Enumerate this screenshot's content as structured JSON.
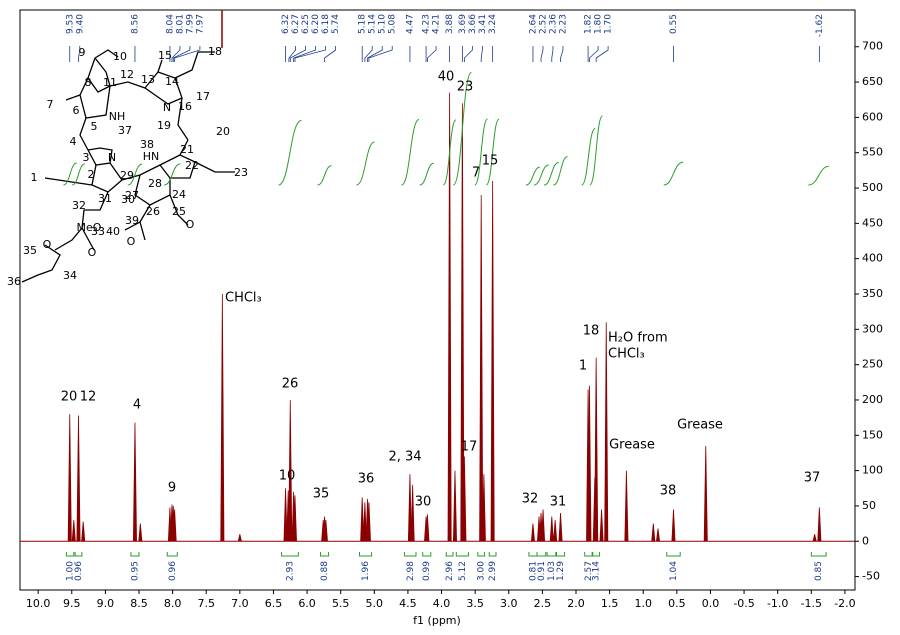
{
  "chart_data": {
    "type": "line",
    "x_label": "f1 (ppm)",
    "color": "#8b0000",
    "xlim": [
      10.27,
      -2.15
    ],
    "ylim": [
      -69,
      752
    ],
    "xticks": [
      {
        "value": 10,
        "label": "10.0"
      },
      9.5,
      {
        "value": 9,
        "label": "9.0"
      },
      8.5,
      {
        "value": 8,
        "label": "8.0"
      },
      7.5,
      {
        "value": 7,
        "label": "7.0"
      },
      6.5,
      {
        "value": 6,
        "label": "6.0"
      },
      5.5,
      {
        "value": 5,
        "label": "5.0"
      },
      4.5,
      {
        "value": 4,
        "label": "4.0"
      },
      3.5,
      {
        "value": 3,
        "label": "3.0"
      },
      2.5,
      {
        "value": 2,
        "label": "2.0"
      },
      1.5,
      {
        "value": 1,
        "label": "1.0"
      },
      0.5,
      {
        "value": 0,
        "label": "0.0"
      },
      -0.5,
      {
        "value": -1,
        "label": "-1.0"
      },
      -1.5,
      {
        "value": -2,
        "label": "-2.0"
      }
    ],
    "yticks": [
      -50,
      0,
      50,
      100,
      150,
      200,
      250,
      300,
      350,
      400,
      450,
      500,
      550,
      600,
      650,
      700
    ],
    "x": [
      9.53,
      9.47,
      9.4,
      9.33,
      8.56,
      8.48,
      8.04,
      8.01,
      7.99,
      7.97,
      7.26,
      7.0,
      6.32,
      6.28,
      6.25,
      6.2,
      6.18,
      5.76,
      5.74,
      5.72,
      5.18,
      5.14,
      5.1,
      5.08,
      4.47,
      4.43,
      4.23,
      4.21,
      3.88,
      3.8,
      3.69,
      3.66,
      3.41,
      3.37,
      3.24,
      2.64,
      2.55,
      2.52,
      2.49,
      2.36,
      2.31,
      2.23,
      1.82,
      1.8,
      1.72,
      1.7,
      1.62,
      1.55,
      1.25,
      0.85,
      0.78,
      0.55,
      0.07,
      -1.55,
      -1.62
    ],
    "values": [
      180,
      30,
      178,
      28,
      168,
      25,
      48,
      52,
      50,
      45,
      350,
      10,
      75,
      72,
      200,
      70,
      65,
      30,
      35,
      30,
      62,
      55,
      60,
      55,
      95,
      80,
      35,
      38,
      635,
      100,
      620,
      120,
      490,
      95,
      510,
      25,
      35,
      40,
      45,
      35,
      30,
      40,
      215,
      220,
      90,
      260,
      45,
      310,
      100,
      25,
      18,
      45,
      135,
      10,
      48
    ],
    "peak_labels": [
      9.53,
      {
        "value": 9.4,
        "label": "9.40"
      },
      8.56,
      8.04,
      8.01,
      7.99,
      7.97,
      6.32,
      6.27,
      6.25,
      {
        "value": 6.2,
        "label": "6.20"
      },
      6.18,
      5.74,
      5.18,
      5.14,
      {
        "value": 5.1,
        "label": "5.10"
      },
      5.08,
      4.47,
      4.23,
      4.21,
      3.88,
      3.69,
      3.66,
      3.41,
      3.24,
      2.64,
      2.52,
      2.36,
      2.23,
      1.82,
      {
        "value": 1.8,
        "label": "1.80"
      },
      {
        "value": 1.7,
        "label": "1.70"
      },
      0.55,
      -1.62
    ],
    "integrals": [
      {
        "value": 1,
        "label": "1.00",
        "range": [
          9.58,
          9.47
        ]
      },
      {
        "value": 0.96,
        "label": "0.96",
        "range": [
          9.45,
          9.35
        ]
      },
      {
        "value": 0.95,
        "label": "0.95",
        "range": [
          8.62,
          8.5
        ]
      },
      {
        "value": 0.96,
        "label": "0.96",
        "range": [
          8.08,
          7.93
        ]
      },
      {
        "value": 2.93,
        "label": "2.93",
        "range": [
          6.38,
          6.13
        ]
      },
      {
        "value": 0.88,
        "label": "0.88",
        "range": [
          5.8,
          5.68
        ]
      },
      {
        "value": 1.96,
        "label": "1.96",
        "range": [
          5.22,
          5.04
        ]
      },
      {
        "value": 2.98,
        "label": "2.98",
        "range": [
          4.55,
          4.38
        ]
      },
      {
        "value": 0.99,
        "label": "0.99",
        "range": [
          4.28,
          4.16
        ]
      },
      {
        "value": 2.96,
        "label": "2.96",
        "range": [
          3.93,
          3.83
        ]
      },
      {
        "value": 5.12,
        "label": "5.12",
        "range": [
          3.78,
          3.6
        ]
      },
      {
        "value": 3,
        "label": "3.00",
        "range": [
          3.46,
          3.36
        ]
      },
      {
        "value": 2.99,
        "label": "2.99",
        "range": [
          3.29,
          3.19
        ]
      },
      {
        "value": 0.81,
        "label": "0.81",
        "range": [
          2.7,
          2.58
        ]
      },
      {
        "value": 0.91,
        "label": "0.91",
        "range": [
          2.58,
          2.45
        ]
      },
      {
        "value": 1.03,
        "label": "1.03",
        "range": [
          2.43,
          2.3
        ]
      },
      {
        "value": 1.29,
        "label": "1.29",
        "range": [
          2.29,
          2.17
        ]
      },
      {
        "value": 2.57,
        "label": "2.57",
        "range": [
          1.87,
          1.76
        ]
      },
      {
        "value": 3.14,
        "label": "3.14",
        "range": [
          1.75,
          1.65
        ]
      },
      {
        "value": 1.04,
        "label": "1.04",
        "range": [
          0.65,
          0.45
        ]
      },
      {
        "value": 0.85,
        "label": "0.85",
        "range": [
          -1.5,
          -1.72
        ]
      }
    ],
    "annotations": [
      "20",
      "12",
      "4",
      "9",
      "CHCl₃",
      "10",
      "26",
      "35",
      "36",
      "2, 34",
      "30",
      "40",
      "23",
      "7",
      "15",
      "17",
      "32",
      "31",
      "1",
      "18",
      "H₂O from",
      "CHCl₃",
      "Grease",
      "Grease",
      "38",
      "37"
    ],
    "structure": {
      "atoms": [
        "10",
        "9",
        "8",
        "11",
        "12",
        "13",
        "14",
        "15",
        "18",
        "17",
        "7",
        "6",
        "5",
        "NH",
        "37",
        "N",
        "16",
        "19",
        "20",
        "4",
        "38",
        "HN",
        "21",
        "22",
        "23",
        "3",
        "N",
        "1",
        "2",
        "29",
        "28",
        "27",
        "24",
        "25",
        "O",
        "32",
        "31",
        "30",
        "26",
        "39",
        "MeO",
        "40",
        "O",
        "33",
        "O",
        "O",
        "35",
        "34",
        "36"
      ]
    }
  }
}
